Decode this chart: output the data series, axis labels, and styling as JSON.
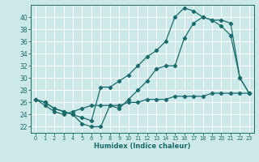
{
  "xlabel": "Humidex (Indice chaleur)",
  "bg_color": "#cce8e8",
  "grid_color": "#b0d8d8",
  "line_color": "#1a6b6b",
  "xlim": [
    -0.5,
    23.5
  ],
  "ylim": [
    21.0,
    42.0
  ],
  "yticks": [
    22,
    24,
    26,
    28,
    30,
    32,
    34,
    36,
    38,
    40
  ],
  "xticks": [
    0,
    1,
    2,
    3,
    4,
    5,
    6,
    7,
    8,
    9,
    10,
    11,
    12,
    13,
    14,
    15,
    16,
    17,
    18,
    19,
    20,
    21,
    22,
    23
  ],
  "line1_x": [
    0,
    1,
    2,
    3,
    4,
    5,
    6,
    7,
    8,
    9,
    10,
    11,
    12,
    13,
    14,
    15,
    16,
    17,
    18,
    19,
    20,
    21,
    22,
    23
  ],
  "line1_y": [
    26.5,
    26.0,
    25.0,
    24.5,
    24.0,
    22.5,
    22.0,
    22.0,
    25.5,
    25.0,
    26.5,
    28.0,
    29.5,
    31.5,
    32.0,
    32.0,
    36.5,
    39.0,
    40.0,
    39.5,
    38.5,
    37.0,
    30.0,
    27.5
  ],
  "line2_x": [
    0,
    1,
    2,
    3,
    4,
    5,
    6,
    7,
    8,
    9,
    10,
    11,
    12,
    13,
    14,
    15,
    16,
    17,
    18,
    19,
    20,
    21,
    22,
    23
  ],
  "line2_y": [
    26.5,
    26.0,
    25.0,
    24.5,
    24.0,
    23.5,
    23.0,
    28.5,
    28.5,
    29.5,
    30.5,
    32.0,
    33.5,
    34.5,
    36.0,
    40.0,
    41.5,
    41.0,
    40.0,
    39.5,
    39.5,
    39.0,
    30.0,
    27.5
  ],
  "line3_x": [
    0,
    1,
    2,
    3,
    4,
    5,
    6,
    7,
    8,
    9,
    10,
    11,
    12,
    13,
    14,
    15,
    16,
    17,
    18,
    19,
    20,
    21,
    22,
    23
  ],
  "line3_y": [
    26.5,
    25.5,
    24.5,
    24.0,
    24.5,
    25.0,
    25.5,
    25.5,
    25.5,
    25.5,
    26.0,
    26.0,
    26.5,
    26.5,
    26.5,
    27.0,
    27.0,
    27.0,
    27.0,
    27.5,
    27.5,
    27.5,
    27.5,
    27.5
  ]
}
